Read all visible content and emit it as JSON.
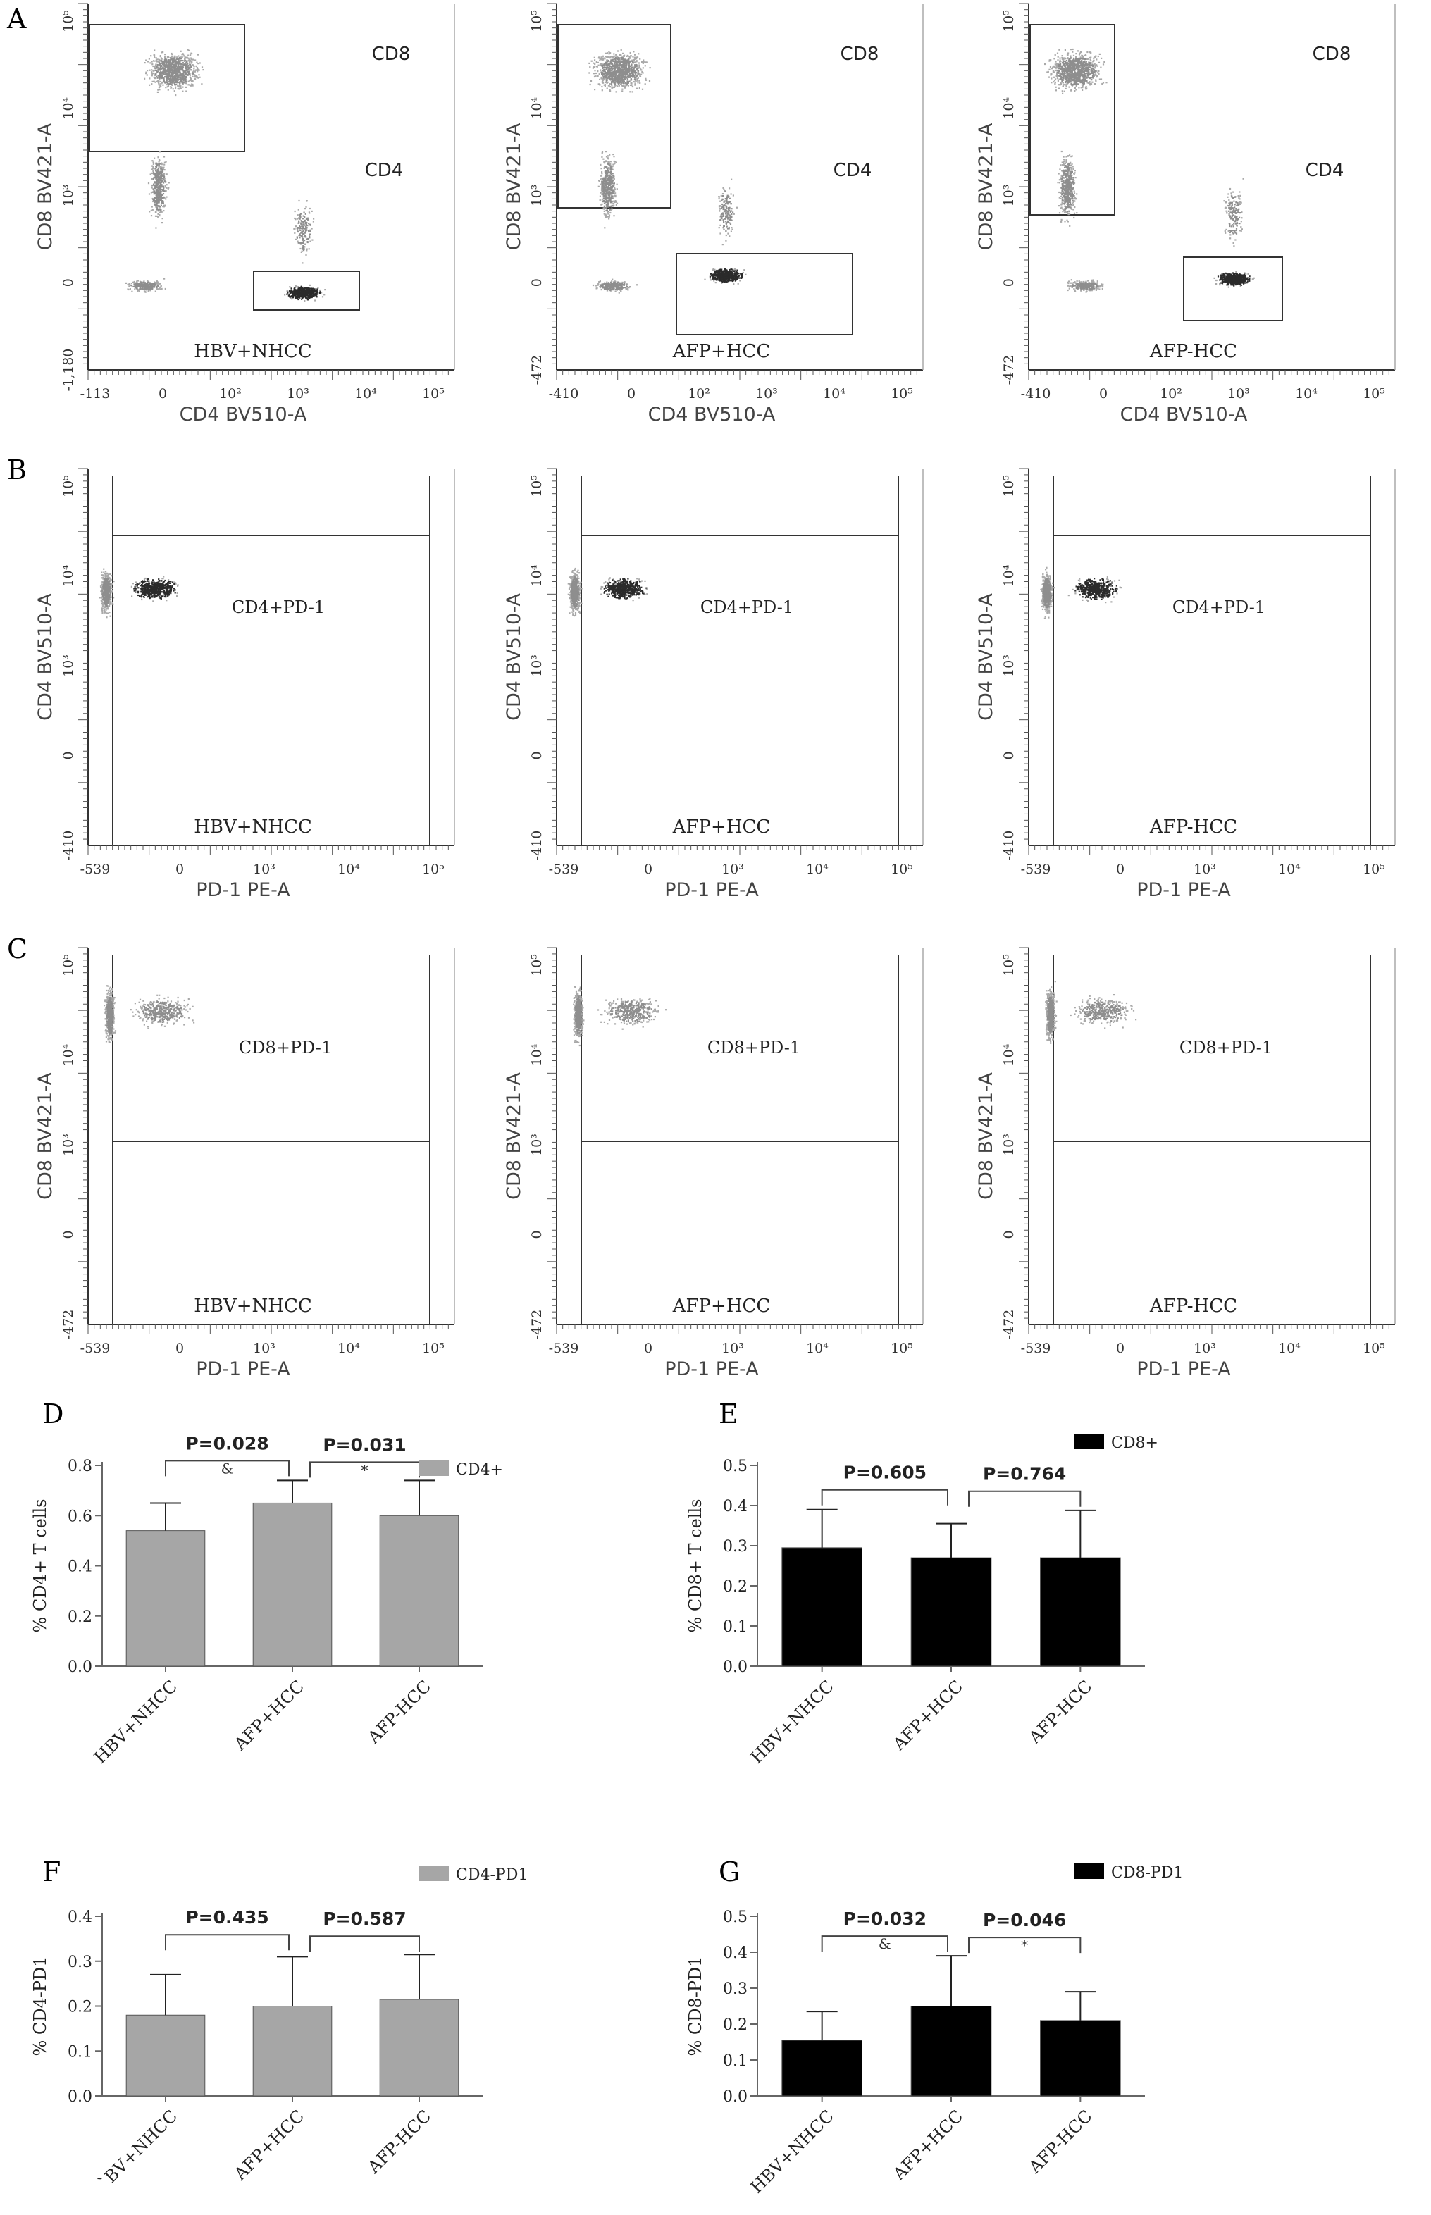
{
  "panel_letters": {
    "A": "A",
    "B": "B",
    "C": "C",
    "D": "D",
    "E": "E",
    "F": "F",
    "G": "G"
  },
  "flow": {
    "A": {
      "title": "",
      "gates": {
        "cd8": "CD8",
        "cd4": "CD4"
      },
      "plots": [
        {
          "sample": "HBV+NHCC",
          "xlabel": "CD4 BV510-A",
          "ylabel": "CD8 BV421-A",
          "xticks": [
            "-113",
            "0",
            "10²",
            "10³",
            "10⁴",
            "10⁵"
          ],
          "yticks": [
            "-1,180",
            "0",
            "10³",
            "10⁴",
            "10⁵"
          ]
        },
        {
          "sample": "AFP+HCC",
          "xlabel": "CD4 BV510-A",
          "ylabel": "CD8 BV421-A",
          "xticks": [
            "-410",
            "0",
            "10²",
            "10³",
            "10⁴",
            "10⁵"
          ],
          "yticks": [
            "-472",
            "0",
            "10³",
            "10⁴",
            "10⁵"
          ]
        },
        {
          "sample": "AFP-HCC",
          "xlabel": "CD4 BV510-A",
          "ylabel": "CD8 BV421-A",
          "xticks": [
            "-410",
            "0",
            "10²",
            "10³",
            "10⁴",
            "10⁵"
          ],
          "yticks": [
            "-472",
            "0",
            "10³",
            "10⁴",
            "10⁵"
          ]
        }
      ]
    },
    "B": {
      "gate": "CD4+PD-1",
      "plots": [
        {
          "sample": "HBV+NHCC",
          "xlabel": "PD-1 PE-A",
          "ylabel": "CD4 BV510-A",
          "xticks": [
            "-539",
            "0",
            "10³",
            "10⁴",
            "10⁵"
          ],
          "yticks": [
            "-410",
            "0",
            "10³",
            "10⁴",
            "10⁵"
          ]
        },
        {
          "sample": "AFP+HCC",
          "xlabel": "PD-1 PE-A",
          "ylabel": "CD4 BV510-A",
          "xticks": [
            "-539",
            "0",
            "10³",
            "10⁴",
            "10⁵"
          ],
          "yticks": [
            "-410",
            "0",
            "10³",
            "10⁴",
            "10⁵"
          ]
        },
        {
          "sample": "AFP-HCC",
          "xlabel": "PD-1 PE-A",
          "ylabel": "CD4 BV510-A",
          "xticks": [
            "-539",
            "0",
            "10³",
            "10⁴",
            "10⁵"
          ],
          "yticks": [
            "-410",
            "0",
            "10³",
            "10⁴",
            "10⁵"
          ]
        }
      ]
    },
    "C": {
      "gate": "CD8+PD-1",
      "plots": [
        {
          "sample": "HBV+NHCC",
          "xlabel": "PD-1 PE-A",
          "ylabel": "CD8 BV421-A",
          "xticks": [
            "-539",
            "0",
            "10³",
            "10⁴",
            "10⁵"
          ],
          "yticks": [
            "-472",
            "0",
            "10³",
            "10⁴",
            "10⁵"
          ]
        },
        {
          "sample": "AFP+HCC",
          "xlabel": "PD-1 PE-A",
          "ylabel": "CD8 BV421-A",
          "xticks": [
            "-539",
            "0",
            "10³",
            "10⁴",
            "10⁵"
          ],
          "yticks": [
            "-472",
            "0",
            "10³",
            "10⁴",
            "10⁵"
          ]
        },
        {
          "sample": "AFP-HCC",
          "xlabel": "PD-1 PE-A",
          "ylabel": "CD8 BV421-A",
          "xticks": [
            "-539",
            "0",
            "10³",
            "10⁴",
            "10⁵"
          ],
          "yticks": [
            "-472",
            "0",
            "10³",
            "10⁴",
            "10⁵"
          ]
        }
      ]
    }
  },
  "chart_data": [
    {
      "panel": "D",
      "type": "bar",
      "color": "#a6a6a6",
      "categories": [
        "HBV+NHCC",
        "AFP+HCC",
        "AFP-HCC"
      ],
      "series": [
        {
          "name": "CD4+",
          "values": [
            0.54,
            0.65,
            0.6
          ],
          "errors": [
            0.11,
            0.09,
            0.14
          ]
        }
      ],
      "ylabel": "% CD4+ T cells",
      "ylim": [
        0,
        0.8
      ],
      "yticks": [
        "0.0",
        "0.2",
        "0.4",
        "0.6",
        "0.8"
      ],
      "comparisons": [
        {
          "from": 0,
          "to": 1,
          "p": "P=0.028",
          "mark": "&"
        },
        {
          "from": 1,
          "to": 2,
          "p": "P=0.031",
          "mark": "*"
        }
      ],
      "legend": "top-right"
    },
    {
      "panel": "E",
      "type": "bar",
      "color": "#000000",
      "categories": [
        "HBV+NHCC",
        "AFP+HCC",
        "AFP-HCC"
      ],
      "series": [
        {
          "name": "CD8+",
          "values": [
            0.295,
            0.27,
            0.27
          ],
          "errors": [
            0.095,
            0.085,
            0.118
          ]
        }
      ],
      "ylabel": "% CD8+ T cells",
      "ylim": [
        0,
        0.5
      ],
      "yticks": [
        "0.0",
        "0.1",
        "0.2",
        "0.3",
        "0.4",
        "0.5"
      ],
      "comparisons": [
        {
          "from": 0,
          "to": 1,
          "p": "P=0.605",
          "mark": ""
        },
        {
          "from": 1,
          "to": 2,
          "p": "P=0.764",
          "mark": ""
        }
      ],
      "legend": "top-right"
    },
    {
      "panel": "F",
      "type": "bar",
      "color": "#a6a6a6",
      "categories": [
        "`BV+NHCC",
        "AFP+HCC",
        "AFP-HCC"
      ],
      "series": [
        {
          "name": "CD4-PD1",
          "values": [
            0.18,
            0.2,
            0.215
          ],
          "errors": [
            0.09,
            0.11,
            0.1
          ]
        }
      ],
      "ylabel": "% CD4-PD1",
      "ylim": [
        0,
        0.4
      ],
      "yticks": [
        "0.0",
        "0.1",
        "0.2",
        "0.3",
        "0.4"
      ],
      "comparisons": [
        {
          "from": 0,
          "to": 1,
          "p": "P=0.435",
          "mark": ""
        },
        {
          "from": 1,
          "to": 2,
          "p": "P=0.587",
          "mark": ""
        }
      ],
      "legend": "top-right"
    },
    {
      "panel": "G",
      "type": "bar",
      "color": "#000000",
      "categories": [
        "HBV+NHCC",
        "AFP+HCC",
        "AFP-HCC"
      ],
      "series": [
        {
          "name": "CD8-PD1",
          "values": [
            0.155,
            0.25,
            0.21
          ],
          "errors": [
            0.08,
            0.14,
            0.08
          ]
        }
      ],
      "ylabel": "% CD8-PD1",
      "ylim": [
        0,
        0.5
      ],
      "yticks": [
        "0.0",
        "0.1",
        "0.2",
        "0.3",
        "0.4",
        "0.5"
      ],
      "comparisons": [
        {
          "from": 0,
          "to": 1,
          "p": "P=0.032",
          "mark": "&"
        },
        {
          "from": 1,
          "to": 2,
          "p": "P=0.046",
          "mark": "*"
        }
      ],
      "legend": "top-right"
    }
  ]
}
